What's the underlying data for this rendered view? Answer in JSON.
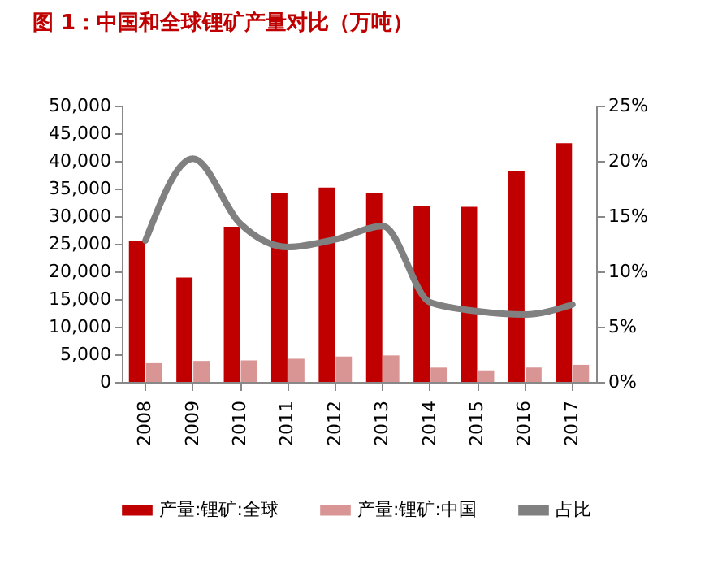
{
  "chart_data": {
    "type": "bar",
    "title": "图 1：中国和全球锂矿产量对比（万吨）",
    "categories": [
      "2008",
      "2009",
      "2010",
      "2011",
      "2012",
      "2013",
      "2014",
      "2015",
      "2016",
      "2017"
    ],
    "series": [
      {
        "name": "产量:锂矿:全球",
        "color": "#c00000",
        "values": [
          25500,
          18900,
          28100,
          34200,
          35200,
          34200,
          31900,
          31700,
          38200,
          43200
        ]
      },
      {
        "name": "产量:锂矿:中国",
        "color": "#d99594",
        "values": [
          3400,
          3800,
          3900,
          4200,
          4600,
          4800,
          2600,
          2100,
          2600,
          3100
        ]
      },
      {
        "name": "占比",
        "type": "line",
        "axis": "y2",
        "color": "#808080",
        "values": [
          12.8,
          20.2,
          14.3,
          12.2,
          12.9,
          14.1,
          7.2,
          6.4,
          6.1,
          7.0
        ]
      }
    ],
    "ylim": [
      0,
      50000
    ],
    "yticks": [
      {
        "value": 0,
        "label": "0"
      },
      {
        "value": 5000,
        "label": "5,000"
      },
      {
        "value": 10000,
        "label": "10,000"
      },
      {
        "value": 15000,
        "label": "15,000"
      },
      {
        "value": 20000,
        "label": "20,000"
      },
      {
        "value": 25000,
        "label": "25,000"
      },
      {
        "value": 30000,
        "label": "30,000"
      },
      {
        "value": 35000,
        "label": "35,000"
      },
      {
        "value": 40000,
        "label": "40,000"
      },
      {
        "value": 45000,
        "label": "45,000"
      },
      {
        "value": 50000,
        "label": "50,000"
      }
    ],
    "y2lim": [
      0,
      25
    ],
    "y2ticks": [
      {
        "value": 0,
        "label": "0%"
      },
      {
        "value": 5,
        "label": "5%"
      },
      {
        "value": 10,
        "label": "10%"
      },
      {
        "value": 15,
        "label": "15%"
      },
      {
        "value": 20,
        "label": "20%"
      },
      {
        "value": 25,
        "label": "25%"
      }
    ],
    "legend": "bottom"
  }
}
